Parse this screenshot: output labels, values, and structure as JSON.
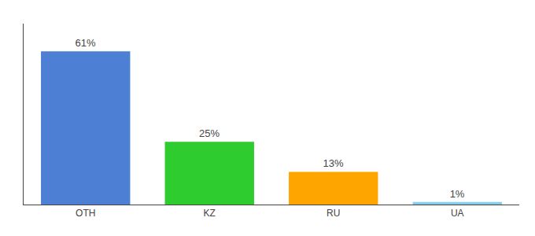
{
  "chart_data": {
    "type": "bar",
    "categories": [
      "OTH",
      "KZ",
      "RU",
      "UA"
    ],
    "values": [
      61,
      25,
      13,
      1
    ],
    "value_labels": [
      "61%",
      "25%",
      "13%",
      "1%"
    ],
    "colors": [
      "#4d7fd4",
      "#2ecc2e",
      "#ffa500",
      "#87ceeb"
    ],
    "ylim": [
      0,
      72
    ],
    "grid": false,
    "data_labels": true,
    "tick_labels": "x"
  }
}
